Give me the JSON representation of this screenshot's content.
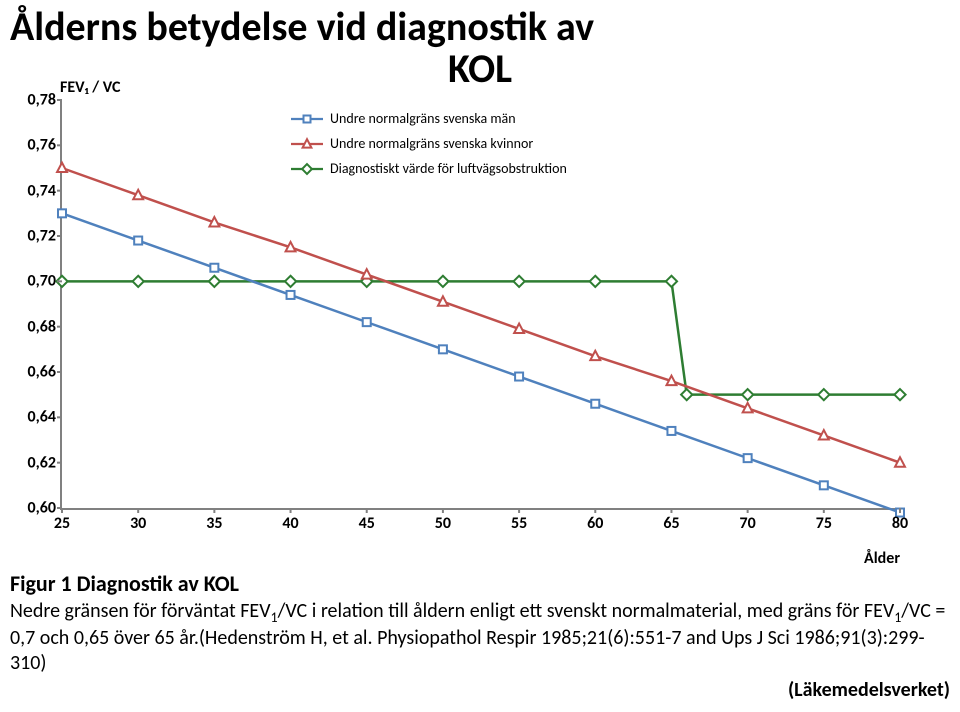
{
  "title_lines": [
    "Ålderns betydelse vid diagnostik av",
    "KOL"
  ],
  "chart": {
    "type": "line",
    "y_axis_label": "FEV₁ / VC",
    "x_axis_label": "Ålder",
    "x_ticks": [
      25,
      30,
      35,
      40,
      45,
      50,
      55,
      60,
      65,
      70,
      75,
      80
    ],
    "y_ticks": [
      "0,60",
      "0,62",
      "0,64",
      "0,66",
      "0,68",
      "0,70",
      "0,72",
      "0,74",
      "0,76",
      "0,78"
    ],
    "xlim": [
      25,
      80
    ],
    "ylim": [
      0.6,
      0.78
    ],
    "axis_color": "#808080",
    "background_color": "#ffffff",
    "tick_fontsize": 16,
    "label_fontsize": 16,
    "legend": {
      "position": "top-right",
      "items": [
        {
          "label": "Undre normalgräns svenska män",
          "series": "men"
        },
        {
          "label": "Undre normalgräns svenska kvinnor",
          "series": "women"
        },
        {
          "label": "Diagnostiskt värde för luftvägsobstruktion",
          "series": "diag"
        }
      ]
    },
    "series": {
      "men": {
        "color": "#4f81bd",
        "line_width": 2.5,
        "marker": "square",
        "marker_size": 8,
        "marker_fill": "#ffffff",
        "marker_stroke": "#4f81bd",
        "points": [
          [
            25,
            0.73
          ],
          [
            30,
            0.718
          ],
          [
            35,
            0.706
          ],
          [
            40,
            0.694
          ],
          [
            45,
            0.682
          ],
          [
            50,
            0.67
          ],
          [
            55,
            0.658
          ],
          [
            60,
            0.646
          ],
          [
            65,
            0.634
          ],
          [
            70,
            0.622
          ],
          [
            75,
            0.61
          ],
          [
            80,
            0.598
          ]
        ]
      },
      "women": {
        "color": "#c0504d",
        "line_width": 2.5,
        "marker": "triangle",
        "marker_size": 9,
        "marker_fill": "#ffffff",
        "marker_stroke": "#c0504d",
        "points": [
          [
            25,
            0.75
          ],
          [
            30,
            0.738
          ],
          [
            35,
            0.726
          ],
          [
            40,
            0.715
          ],
          [
            45,
            0.703
          ],
          [
            50,
            0.691
          ],
          [
            55,
            0.679
          ],
          [
            60,
            0.667
          ],
          [
            65,
            0.656
          ],
          [
            70,
            0.644
          ],
          [
            75,
            0.632
          ],
          [
            80,
            0.62
          ]
        ]
      },
      "diag": {
        "color": "#2e7d32",
        "line_width": 2.5,
        "marker": "diamond",
        "marker_size": 8,
        "marker_fill": "#ffffff",
        "marker_stroke": "#2e7d32",
        "points": [
          [
            25,
            0.7
          ],
          [
            30,
            0.7
          ],
          [
            35,
            0.7
          ],
          [
            40,
            0.7
          ],
          [
            45,
            0.7
          ],
          [
            50,
            0.7
          ],
          [
            55,
            0.7
          ],
          [
            60,
            0.7
          ],
          [
            65,
            0.7
          ],
          [
            66,
            0.65
          ],
          [
            70,
            0.65
          ],
          [
            75,
            0.65
          ],
          [
            80,
            0.65
          ]
        ]
      }
    }
  },
  "caption": {
    "fig_label": "Figur 1 Diagnostik av KOL",
    "body_html": "Nedre gränsen för förväntat FEV<sub>1</sub>/VC i relation till åldern enligt ett svenskt normalmaterial, med gräns för FEV<sub>1</sub>/VC = 0,7 och 0,65 över 65 år.(Hedenström H, et al. Physiopathol Respir 1985;21(6):551-7 and Ups J Sci 1986;91(3):299-310)",
    "credit": "(Läkemedelsverket)"
  }
}
